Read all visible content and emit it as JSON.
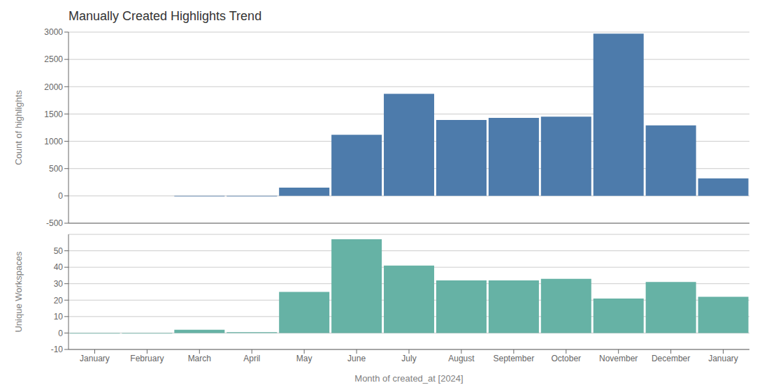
{
  "chart_data": [
    {
      "type": "bar",
      "title": "Manually Created Highlights Trend",
      "categories": [
        "January",
        "February",
        "March",
        "April",
        "May",
        "June",
        "July",
        "August",
        "September",
        "October",
        "November",
        "December",
        "January"
      ],
      "values": [
        0,
        0,
        -8,
        -8,
        150,
        1120,
        1870,
        1390,
        1430,
        1450,
        2970,
        1290,
        320
      ],
      "color": "#4d7bab",
      "ylabel": "Count of highlights",
      "ylim": [
        -500,
        3000
      ],
      "yticks": [
        -500,
        0,
        500,
        1000,
        1500,
        2000,
        2500,
        3000
      ],
      "grid": true,
      "tick_labels": "y"
    },
    {
      "type": "bar",
      "xlabel": "Month of created_at [2024]",
      "ylabel": "Unique Workspaces",
      "categories": [
        "January",
        "February",
        "March",
        "April",
        "May",
        "June",
        "July",
        "August",
        "September",
        "October",
        "November",
        "December",
        "January"
      ],
      "values": [
        -0.3,
        -0.3,
        2.0,
        0.5,
        25,
        57,
        41,
        32,
        32,
        33,
        21,
        31,
        22
      ],
      "color": "#66b2a5",
      "ylim": [
        -10,
        60
      ],
      "yticks": [
        -10,
        0,
        10,
        20,
        30,
        40,
        50
      ],
      "grid": true
    }
  ]
}
